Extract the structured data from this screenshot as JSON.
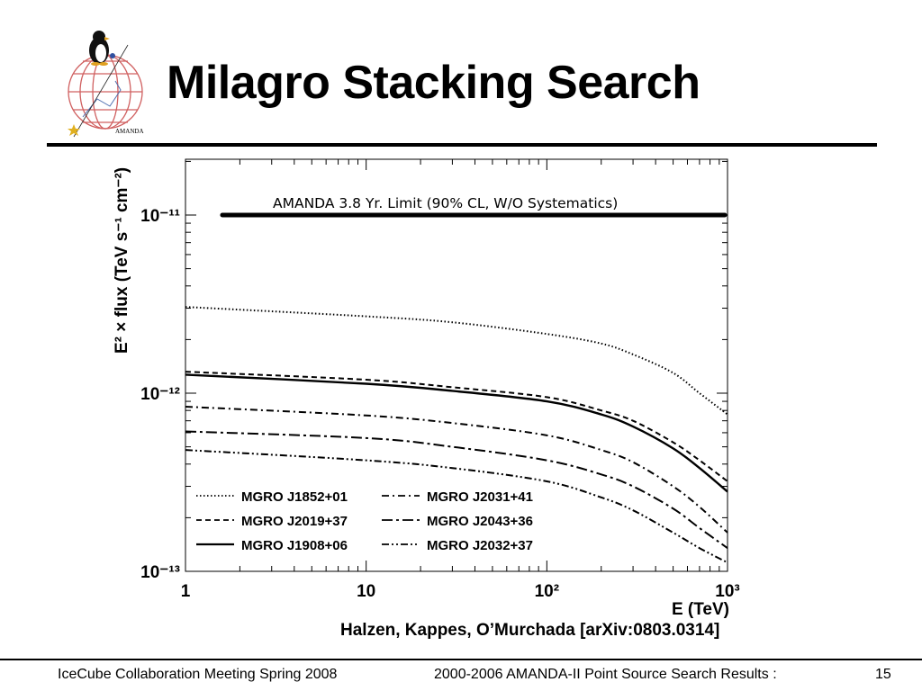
{
  "slide": {
    "title": "Milagro Stacking Search",
    "citation": "Halzen, Kappes, O’Murchada [arXiv:0803.0314]",
    "logo_text": "AMANDA",
    "logo_icon": "penguin-on-globe-icon"
  },
  "footer": {
    "left": "IceCube Collaboration Meeting Spring 2008",
    "center": "2000-2006 AMANDA-II Point Source Search Results :",
    "page": "15"
  },
  "chart_data": {
    "type": "line",
    "x_scale": "log",
    "y_scale": "log",
    "xlim": [
      1,
      1000
    ],
    "ylim": [
      1e-13,
      2e-11
    ],
    "xlabel": "E (TeV)",
    "ylabel": "E² × flux (TeV s⁻¹ cm⁻²)",
    "x_ticks": [
      "1",
      "10",
      "10²",
      "10³"
    ],
    "y_ticks": [
      "10⁻¹³",
      "10⁻¹²",
      "10⁻¹¹"
    ],
    "grid": false,
    "legend_position": "bottom-left",
    "limit_line": {
      "label": "AMANDA 3.8 Yr. Limit (90% CL, W/O Systematics)",
      "x": [
        1.6,
        1000
      ],
      "y": [
        1e-11,
        1e-11
      ]
    },
    "series": [
      {
        "name": "MGRO J1852+01",
        "style": "dotted",
        "x": [
          1,
          10,
          30,
          100,
          200,
          300,
          500,
          700,
          1000
        ],
        "y": [
          3.05e-12,
          2.7e-12,
          2.5e-12,
          2.15e-12,
          1.9e-12,
          1.65e-12,
          1.3e-12,
          1e-12,
          7.6e-13
        ]
      },
      {
        "name": "MGRO J2019+37",
        "style": "dashed",
        "x": [
          1,
          10,
          30,
          100,
          200,
          300,
          500,
          700,
          1000
        ],
        "y": [
          1.32e-12,
          1.19e-12,
          1.08e-12,
          9.5e-13,
          8e-13,
          7e-13,
          5.3e-13,
          4.2e-13,
          3.2e-13
        ]
      },
      {
        "name": "MGRO J1908+06",
        "style": "solid",
        "x": [
          1,
          10,
          30,
          100,
          200,
          300,
          500,
          700,
          1000
        ],
        "y": [
          1.27e-12,
          1.13e-12,
          1.03e-12,
          9e-13,
          7.6e-13,
          6.5e-13,
          4.9e-13,
          3.8e-13,
          2.8e-13
        ]
      },
      {
        "name": "MGRO J2031+41",
        "style": "dash-dot",
        "x": [
          1,
          10,
          30,
          100,
          200,
          300,
          500,
          700,
          1000
        ],
        "y": [
          8.4e-13,
          7.5e-13,
          6.8e-13,
          5.8e-13,
          4.8e-13,
          4.1e-13,
          3e-13,
          2.3e-13,
          1.65e-13
        ]
      },
      {
        "name": "MGRO J2043+36",
        "style": "long-dash-dot",
        "x": [
          1,
          10,
          30,
          100,
          200,
          300,
          500,
          700,
          1000
        ],
        "y": [
          6.1e-13,
          5.6e-13,
          5e-13,
          4.2e-13,
          3.5e-13,
          3e-13,
          2.25e-13,
          1.75e-13,
          1.35e-13
        ]
      },
      {
        "name": "MGRO J2032+37",
        "style": "dash-dot-dot",
        "x": [
          1,
          10,
          30,
          100,
          200,
          300,
          500,
          700,
          1000
        ],
        "y": [
          4.8e-13,
          4.2e-13,
          3.8e-13,
          3.2e-13,
          2.6e-13,
          2.2e-13,
          1.65e-13,
          1.35e-13,
          1.12e-13
        ]
      }
    ]
  },
  "colors": {
    "line": "#000000",
    "globe": "#d06060",
    "background": "#ffffff"
  }
}
